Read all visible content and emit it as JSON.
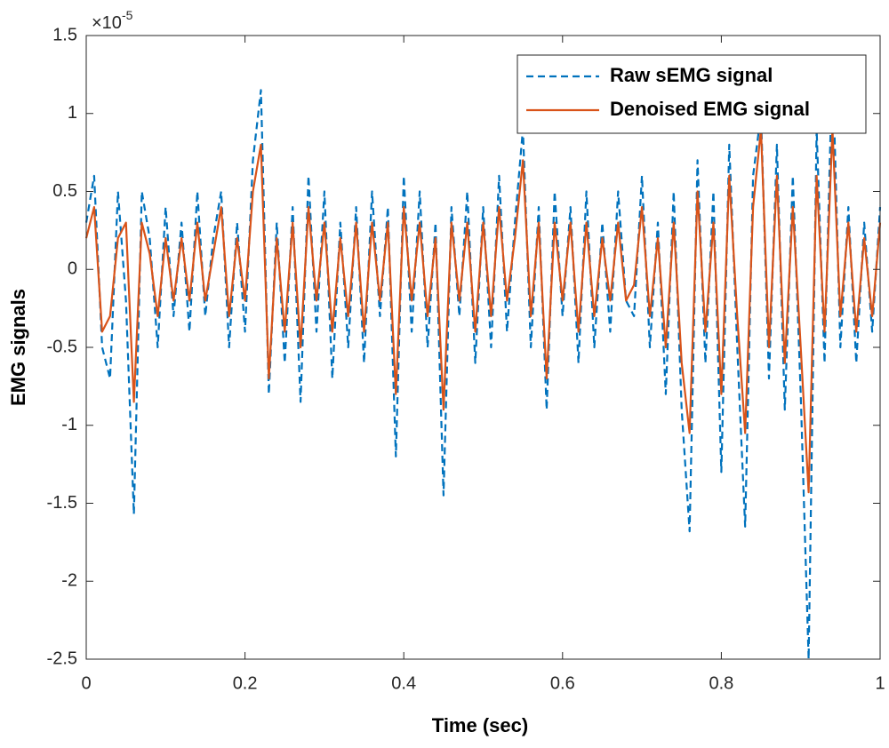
{
  "chart_data": {
    "type": "line",
    "xlabel": "Time (sec)",
    "ylabel": "EMG signals",
    "y_multiplier": {
      "base": "×10",
      "exponent": "-5"
    },
    "x": [
      0,
      0.01,
      0.02,
      0.03,
      0.04,
      0.05,
      0.06,
      0.07,
      0.08,
      0.09,
      0.1,
      0.11,
      0.12,
      0.13,
      0.14,
      0.15,
      0.16,
      0.17,
      0.18,
      0.19,
      0.2,
      0.21,
      0.22,
      0.23,
      0.24,
      0.25,
      0.26,
      0.27,
      0.28,
      0.29,
      0.3,
      0.31,
      0.32,
      0.33,
      0.34,
      0.35,
      0.36,
      0.37,
      0.38,
      0.39,
      0.4,
      0.41,
      0.42,
      0.43,
      0.44,
      0.45,
      0.46,
      0.47,
      0.48,
      0.49,
      0.5,
      0.51,
      0.52,
      0.53,
      0.54,
      0.55,
      0.56,
      0.57,
      0.58,
      0.59,
      0.6,
      0.61,
      0.62,
      0.63,
      0.64,
      0.65,
      0.66,
      0.67,
      0.68,
      0.69,
      0.7,
      0.71,
      0.72,
      0.73,
      0.74,
      0.75,
      0.76,
      0.77,
      0.78,
      0.79,
      0.8,
      0.81,
      0.82,
      0.83,
      0.84,
      0.85,
      0.86,
      0.87,
      0.88,
      0.89,
      0.9,
      0.91,
      0.92,
      0.93,
      0.94,
      0.95,
      0.96,
      0.97,
      0.98,
      0.99,
      1
    ],
    "series": [
      {
        "name": "Raw sEMG signal",
        "color": "#0072bd",
        "dash": true,
        "values": [
          0.3,
          0.6,
          -0.5,
          -0.7,
          0.5,
          -0.2,
          -1.57,
          0.5,
          0.2,
          -0.5,
          0.4,
          -0.3,
          0.3,
          -0.4,
          0.5,
          -0.3,
          0.2,
          0.5,
          -0.5,
          0.3,
          -0.4,
          0.7,
          1.15,
          -0.8,
          0.3,
          -0.6,
          0.4,
          -0.85,
          0.6,
          -0.4,
          0.5,
          -0.7,
          0.3,
          -0.5,
          0.4,
          -0.6,
          0.5,
          -0.3,
          0.4,
          -1.2,
          0.6,
          -0.4,
          0.5,
          -0.5,
          0.3,
          -1.45,
          0.4,
          -0.3,
          0.5,
          -0.6,
          0.4,
          -0.5,
          0.6,
          -0.4,
          0.3,
          0.9,
          -0.5,
          0.4,
          -0.9,
          0.5,
          -0.3,
          0.4,
          -0.6,
          0.5,
          -0.5,
          0.3,
          -0.4,
          0.5,
          -0.2,
          -0.3,
          0.6,
          -0.5,
          0.3,
          -0.8,
          0.5,
          -0.9,
          -1.68,
          0.7,
          -0.6,
          0.5,
          -1.3,
          0.8,
          -0.5,
          -1.65,
          0.6,
          1.0,
          -0.7,
          0.8,
          -0.9,
          0.6,
          -0.8,
          -2.5,
          0.9,
          -0.6,
          1.35,
          -0.5,
          0.4,
          -0.6,
          0.3,
          -0.4,
          0.4
        ]
      },
      {
        "name": "Denoised EMG signal",
        "color": "#d95319",
        "dash": false,
        "values": [
          0.2,
          0.4,
          -0.4,
          -0.3,
          0.2,
          0.3,
          -0.85,
          0.3,
          0.1,
          -0.3,
          0.2,
          -0.2,
          0.2,
          -0.2,
          0.3,
          -0.2,
          0.1,
          0.4,
          -0.3,
          0.2,
          -0.2,
          0.5,
          0.8,
          -0.7,
          0.2,
          -0.4,
          0.3,
          -0.5,
          0.4,
          -0.2,
          0.3,
          -0.4,
          0.2,
          -0.3,
          0.3,
          -0.4,
          0.3,
          -0.2,
          0.3,
          -0.8,
          0.4,
          -0.2,
          0.3,
          -0.3,
          0.2,
          -0.9,
          0.3,
          -0.2,
          0.3,
          -0.4,
          0.3,
          -0.3,
          0.4,
          -0.2,
          0.2,
          0.7,
          -0.3,
          0.3,
          -0.7,
          0.3,
          -0.2,
          0.3,
          -0.4,
          0.3,
          -0.3,
          0.2,
          -0.2,
          0.3,
          -0.2,
          -0.1,
          0.4,
          -0.3,
          0.2,
          -0.5,
          0.3,
          -0.6,
          -1.05,
          0.5,
          -0.4,
          0.3,
          -0.8,
          0.6,
          -0.3,
          -1.05,
          0.4,
          0.9,
          -0.5,
          0.6,
          -0.6,
          0.4,
          -0.5,
          -1.43,
          0.6,
          -0.4,
          0.9,
          -0.3,
          0.3,
          -0.4,
          0.2,
          -0.3,
          0.3
        ]
      }
    ],
    "xlim": [
      0,
      1
    ],
    "xticks": [
      0,
      0.2,
      0.4,
      0.6,
      0.8,
      1
    ],
    "ylim": [
      -2.5,
      1.5
    ],
    "yticks": [
      -2.5,
      -2,
      -1.5,
      -1,
      -0.5,
      0,
      0.5,
      1,
      1.5
    ],
    "legend": "upper right",
    "grid": false
  }
}
